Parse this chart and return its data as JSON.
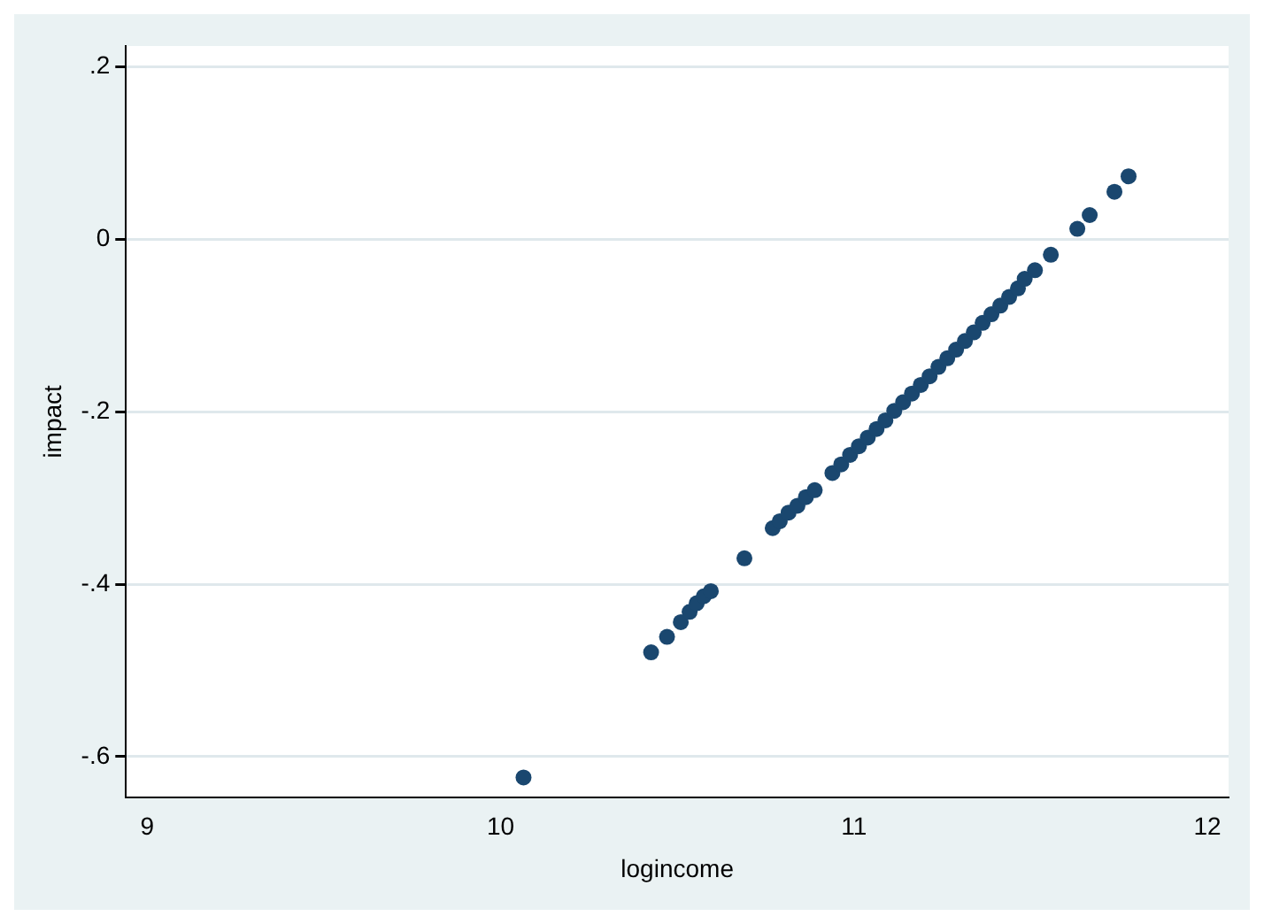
{
  "chart_data": {
    "type": "scatter",
    "xlabel": "logincome",
    "ylabel": "impact",
    "series": [
      {
        "color": "#1a476f",
        "x": [
          10.065,
          10.426,
          10.471,
          10.51,
          10.535,
          10.555,
          10.575,
          10.595,
          10.69,
          10.77,
          10.79,
          10.815,
          10.84,
          10.864,
          10.889,
          10.939,
          10.964,
          10.989,
          11.014,
          11.039,
          11.064,
          11.089,
          11.114,
          11.139,
          11.164,
          11.189,
          11.214,
          11.239,
          11.264,
          11.289,
          11.314,
          11.339,
          11.364,
          11.389,
          11.414,
          11.439,
          11.464,
          11.483,
          11.512,
          11.557,
          11.632,
          11.667,
          11.737,
          11.777
        ],
        "values": [
          -0.624,
          -0.479,
          -0.461,
          -0.444,
          -0.432,
          -0.422,
          -0.414,
          -0.408,
          -0.37,
          -0.335,
          -0.327,
          -0.317,
          -0.309,
          -0.299,
          -0.291,
          -0.271,
          -0.261,
          -0.25,
          -0.24,
          -0.23,
          -0.22,
          -0.21,
          -0.199,
          -0.189,
          -0.179,
          -0.169,
          -0.159,
          -0.148,
          -0.138,
          -0.128,
          -0.118,
          -0.108,
          -0.097,
          -0.087,
          -0.077,
          -0.067,
          -0.057,
          -0.046,
          -0.036,
          -0.018,
          0.012,
          0.028,
          0.055,
          0.073
        ]
      }
    ],
    "xlim": [
      8.94,
      12.06
    ],
    "xticks": [
      9,
      10,
      11,
      12
    ],
    "ylim": [
      -0.647,
      0.224
    ],
    "yticks": [
      {
        "value": -0.6,
        "label": "-.6"
      },
      {
        "value": -0.4,
        "label": "-.4"
      },
      {
        "value": -0.2,
        "label": "-.2"
      },
      0,
      {
        "value": 0.2,
        "label": ".2"
      }
    ],
    "grid": "y",
    "marker": "circle"
  }
}
